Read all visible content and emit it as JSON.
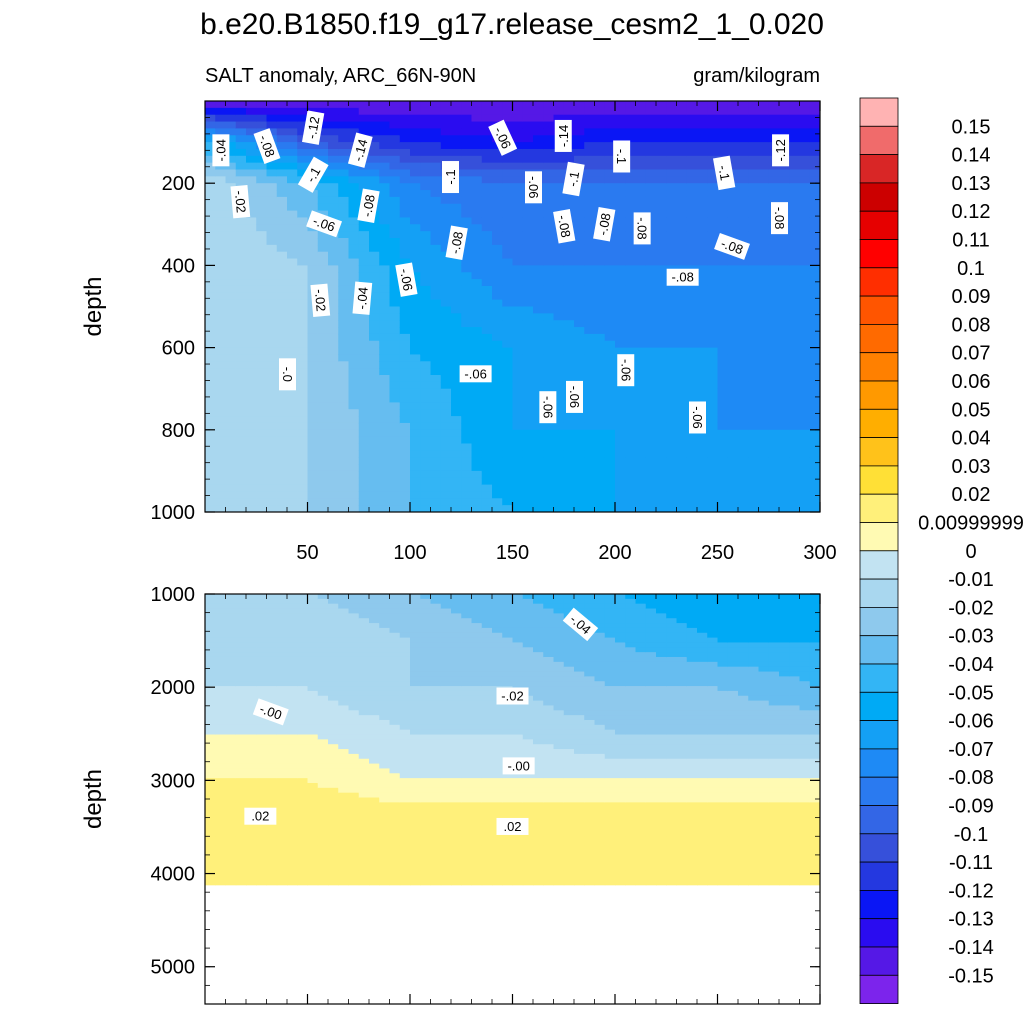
{
  "figure": {
    "title": "b.e20.B1850.f19_g17.release_cesm2_1_0.020",
    "subtitle_left": "SALT anomaly, ARC_66N-90N",
    "subtitle_right": "gram/kilogram"
  },
  "chart_data": [
    {
      "type": "heatmap",
      "panel": "upper",
      "ylabel": "depth",
      "xlabel": "",
      "xlim": [
        0,
        300
      ],
      "ylim": [
        1000,
        0
      ],
      "x_ticks": [
        "50",
        "100",
        "150",
        "200",
        "250",
        "300"
      ],
      "y_ticks": [
        "200",
        "400",
        "600",
        "800",
        "1000"
      ],
      "depth_layers": [
        {
          "depth": 0,
          "values_at_x": {
            "0": -0.15,
            "50": -0.15,
            "100": -0.15,
            "150": -0.15,
            "200": -0.15,
            "250": -0.15,
            "300": -0.15
          }
        },
        {
          "depth": 100,
          "values_at_x": {
            "0": -0.05,
            "50": -0.1,
            "100": -0.12,
            "150": -0.13,
            "200": -0.12,
            "250": -0.12,
            "300": -0.12
          }
        },
        {
          "depth": 200,
          "values_at_x": {
            "0": -0.01,
            "50": -0.04,
            "100": -0.08,
            "150": -0.09,
            "200": -0.09,
            "250": -0.09,
            "300": -0.09
          }
        },
        {
          "depth": 400,
          "values_at_x": {
            "0": -0.01,
            "50": -0.02,
            "100": -0.06,
            "150": -0.08,
            "200": -0.08,
            "250": -0.08,
            "300": -0.08
          }
        },
        {
          "depth": 600,
          "values_at_x": {
            "0": -0.01,
            "50": -0.02,
            "100": -0.05,
            "150": -0.06,
            "200": -0.07,
            "250": -0.07,
            "300": -0.07
          }
        },
        {
          "depth": 800,
          "values_at_x": {
            "0": -0.01,
            "50": -0.02,
            "100": -0.04,
            "150": -0.06,
            "200": -0.06,
            "250": -0.07,
            "300": -0.07
          }
        },
        {
          "depth": 1000,
          "values_at_x": {
            "0": -0.01,
            "50": -0.02,
            "100": -0.04,
            "150": -0.05,
            "200": -0.06,
            "250": -0.06,
            "300": -0.06
          }
        }
      ],
      "contour_labels": [
        {
          "text": "-.04",
          "x": 8,
          "y": 120,
          "rot": -90
        },
        {
          "text": "-.08",
          "x": 30,
          "y": 110,
          "rot": 70
        },
        {
          "text": "-.12",
          "x": 53,
          "y": 65,
          "rot": -80
        },
        {
          "text": "-.14",
          "x": 76,
          "y": 120,
          "rot": -75
        },
        {
          "text": "-.1",
          "x": 53,
          "y": 180,
          "rot": -60
        },
        {
          "text": "-.02",
          "x": 17,
          "y": 245,
          "rot": 85
        },
        {
          "text": "-.08",
          "x": 80,
          "y": 255,
          "rot": -80
        },
        {
          "text": "-.06",
          "x": 58,
          "y": 300,
          "rot": 20
        },
        {
          "text": "-.1",
          "x": 120,
          "y": 185,
          "rot": -90
        },
        {
          "text": "-.06",
          "x": 145,
          "y": 90,
          "rot": 65
        },
        {
          "text": "-.14",
          "x": 175,
          "y": 85,
          "rot": -90
        },
        {
          "text": "-.06",
          "x": 160,
          "y": 210,
          "rot": 90
        },
        {
          "text": "-.1",
          "x": 180,
          "y": 190,
          "rot": -80
        },
        {
          "text": "-.1",
          "x": 203,
          "y": 135,
          "rot": 90
        },
        {
          "text": "-.08",
          "x": 123,
          "y": 345,
          "rot": -80
        },
        {
          "text": "-.08",
          "x": 175,
          "y": 305,
          "rot": 80
        },
        {
          "text": "-.08",
          "x": 195,
          "y": 300,
          "rot": -80
        },
        {
          "text": "-.08",
          "x": 213,
          "y": 310,
          "rot": 90
        },
        {
          "text": "-.1",
          "x": 253,
          "y": 175,
          "rot": 80
        },
        {
          "text": "-.12",
          "x": 281,
          "y": 120,
          "rot": -90
        },
        {
          "text": "-.08",
          "x": 280,
          "y": 285,
          "rot": 90
        },
        {
          "text": "-.08",
          "x": 257,
          "y": 355,
          "rot": 20
        },
        {
          "text": "-.08",
          "x": 233,
          "y": 430,
          "rot": 0
        },
        {
          "text": "-.06",
          "x": 98,
          "y": 435,
          "rot": 80
        },
        {
          "text": "-.04",
          "x": 77,
          "y": 480,
          "rot": -85
        },
        {
          "text": "-.02",
          "x": 56,
          "y": 485,
          "rot": 85
        },
        {
          "text": "-.0",
          "x": 40,
          "y": 665,
          "rot": 90
        },
        {
          "text": "-.06",
          "x": 132,
          "y": 665,
          "rot": 0
        },
        {
          "text": "-.06",
          "x": 167,
          "y": 745,
          "rot": 90
        },
        {
          "text": "-.06",
          "x": 180,
          "y": 720,
          "rot": 90
        },
        {
          "text": "-.06",
          "x": 205,
          "y": 655,
          "rot": 90
        },
        {
          "text": "-.06",
          "x": 240,
          "y": 770,
          "rot": 90
        }
      ]
    },
    {
      "type": "heatmap",
      "panel": "lower",
      "ylabel": "depth",
      "xlabel": "",
      "xlim": [
        0,
        300
      ],
      "ylim": [
        5400,
        1000
      ],
      "y_ticks": [
        "1000",
        "2000",
        "3000",
        "4000",
        "5000"
      ],
      "bottom_depth": 4120,
      "depth_layers": [
        {
          "depth": 1000,
          "values_at_x": {
            "0": -0.02,
            "50": -0.02,
            "100": -0.03,
            "150": -0.04,
            "200": -0.05,
            "250": -0.06,
            "300": -0.06
          }
        },
        {
          "depth": 1500,
          "values_at_x": {
            "0": -0.02,
            "50": -0.01,
            "100": -0.02,
            "150": -0.03,
            "200": -0.04,
            "250": -0.05,
            "300": -0.05
          }
        },
        {
          "depth": 2000,
          "values_at_x": {
            "0": -0.01,
            "50": -0.01,
            "100": -0.02,
            "150": -0.02,
            "200": -0.03,
            "250": -0.03,
            "300": -0.04
          }
        },
        {
          "depth": 2500,
          "values_at_x": {
            "0": 0.0,
            "50": 0.0,
            "100": -0.01,
            "150": -0.01,
            "200": -0.02,
            "250": -0.02,
            "300": -0.02
          }
        },
        {
          "depth": 3000,
          "values_at_x": {
            "0": 0.01,
            "50": 0.01,
            "100": 0.0,
            "150": 0.0,
            "200": 0.0,
            "250": 0.0,
            "300": 0.0
          }
        },
        {
          "depth": 3500,
          "values_at_x": {
            "0": 0.02,
            "50": 0.02,
            "100": 0.02,
            "150": 0.02,
            "200": 0.02,
            "250": 0.02,
            "300": 0.02
          }
        },
        {
          "depth": 4100,
          "values_at_x": {
            "0": 0.02,
            "50": 0.02,
            "100": 0.02,
            "150": 0.02,
            "200": 0.02,
            "250": 0.02,
            "300": 0.02
          }
        }
      ],
      "contour_labels": [
        {
          "text": "-.04",
          "x": 183,
          "y": 1330,
          "rot": 40
        },
        {
          "text": "-.02",
          "x": 150,
          "y": 2100,
          "rot": 0
        },
        {
          "text": "-.00",
          "x": 32,
          "y": 2270,
          "rot": 20
        },
        {
          "text": "-.00",
          "x": 153,
          "y": 2850,
          "rot": 0
        },
        {
          "text": ".02",
          "x": 27,
          "y": 3390,
          "rot": 0
        },
        {
          "text": ".02",
          "x": 150,
          "y": 3500,
          "rot": 0
        }
      ]
    }
  ],
  "colorbar": {
    "labels": [
      "0.15",
      "0.14",
      "0.13",
      "0.12",
      "0.11",
      "0.1",
      "0.09",
      "0.08",
      "0.07",
      "0.06",
      "0.05",
      "0.04",
      "0.03",
      "0.02",
      "0.00999999",
      "0",
      "-0.01",
      "-0.02",
      "-0.03",
      "-0.04",
      "-0.05",
      "-0.06",
      "-0.07",
      "-0.08",
      "-0.09",
      "-0.1",
      "-0.11",
      "-0.12",
      "-0.13",
      "-0.14",
      "-0.15"
    ],
    "colors": [
      "#ffb3b3",
      "#f06b6b",
      "#d92626",
      "#cc0000",
      "#e60000",
      "#ff0000",
      "#ff2e00",
      "#ff5500",
      "#ff6a00",
      "#ff8000",
      "#ff9900",
      "#ffae00",
      "#ffc21a",
      "#ffe036",
      "#fff07a",
      "#fffab3",
      "#c2e3f2",
      "#a9d7ef",
      "#8ec9ed",
      "#66bdf0",
      "#33b5f5",
      "#00aaf5",
      "#14a0f5",
      "#1e8af5",
      "#2a7af0",
      "#3366e6",
      "#3650da",
      "#2438e0",
      "#0a16f5",
      "#2a0cf0",
      "#5518e6",
      "#7c24ec"
    ]
  }
}
